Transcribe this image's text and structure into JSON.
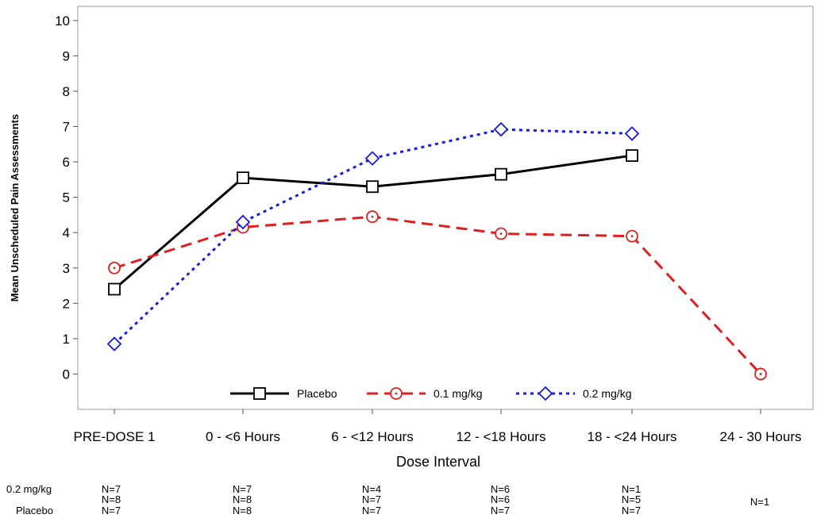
{
  "chart_data": {
    "type": "line",
    "xlabel": "Dose Interval",
    "ylabel": "Mean Unscheduled Pain Assessments",
    "categories": [
      "PRE-DOSE 1",
      "0 - <6 Hours",
      "6 - <12 Hours",
      "12 - <18 Hours",
      "18 - <24 Hours",
      "24 - 30 Hours"
    ],
    "ylim": [
      -1,
      10.4
    ],
    "yticks": [
      0,
      1,
      2,
      3,
      4,
      5,
      6,
      7,
      8,
      9,
      10
    ],
    "grid": false,
    "legend_position": "bottom-inside",
    "series": [
      {
        "name": "Placebo",
        "color": "#000000",
        "marker": "square",
        "dash": "solid",
        "values": [
          2.4,
          5.55,
          5.3,
          5.65,
          6.18,
          null
        ]
      },
      {
        "name": "0.1 mg/kg",
        "color": "#e02020",
        "marker": "circle",
        "dash": "dashed",
        "values": [
          3.0,
          4.15,
          4.45,
          3.97,
          3.9,
          0.0
        ]
      },
      {
        "name": "0.2 mg/kg",
        "color": "#1a1ae0",
        "marker": "diamond",
        "dash": "dotted",
        "values": [
          0.85,
          4.3,
          6.1,
          6.92,
          6.8,
          null
        ]
      }
    ],
    "n_table": {
      "row_labels": [
        "0.2 mg/kg",
        "",
        "Placebo"
      ],
      "columns": [
        [
          "N=7",
          "N=8",
          "N=7"
        ],
        [
          "N=7",
          "N=8",
          "N=8"
        ],
        [
          "N=4",
          "N=7",
          "N=7"
        ],
        [
          "N=6",
          "N=6",
          "N=7"
        ],
        [
          "N=1",
          "N=5",
          "N=7"
        ],
        [
          "",
          "N=1",
          ""
        ]
      ]
    }
  }
}
